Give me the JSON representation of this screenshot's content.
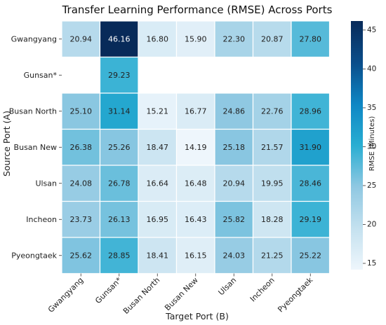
{
  "chart_data": {
    "type": "heatmap",
    "title": "Transfer Learning Performance (RMSE) Across Ports",
    "xlabel": "Target Port (B)",
    "ylabel": "Source Port (A)",
    "x_categories": [
      "Gwangyang",
      "Gunsan*",
      "Busan North",
      "Busan New",
      "Ulsan",
      "Incheon",
      "Pyeongtaek"
    ],
    "y_categories": [
      "Gwangyang",
      "Gunsan*",
      "Busan North",
      "Busan New",
      "Ulsan",
      "Incheon",
      "Pyeongtaek"
    ],
    "values": [
      [
        20.94,
        46.16,
        16.8,
        15.9,
        22.3,
        20.87,
        27.8
      ],
      [
        null,
        29.23,
        null,
        null,
        null,
        null,
        null
      ],
      [
        25.1,
        31.14,
        15.21,
        16.77,
        24.86,
        22.76,
        28.96
      ],
      [
        26.38,
        25.26,
        18.47,
        14.19,
        25.18,
        21.57,
        31.9
      ],
      [
        24.08,
        26.78,
        16.64,
        16.48,
        20.94,
        19.95,
        28.46
      ],
      [
        23.73,
        26.13,
        16.95,
        16.43,
        25.82,
        18.28,
        29.19
      ],
      [
        25.62,
        28.85,
        18.41,
        16.15,
        24.03,
        21.25,
        25.22
      ]
    ],
    "colorbar": {
      "label": "RMSE (Minutes)",
      "range": [
        14.19,
        46.16
      ],
      "ticks": [
        15,
        20,
        25,
        30,
        35,
        40,
        45
      ],
      "colormap": "Blues-like",
      "colors": [
        "#eef6fc",
        "#c4e1ef",
        "#8fc8e2",
        "#29aed2",
        "#0e86c4",
        "#0a4d8a",
        "#082a59"
      ]
    },
    "grid": false
  }
}
